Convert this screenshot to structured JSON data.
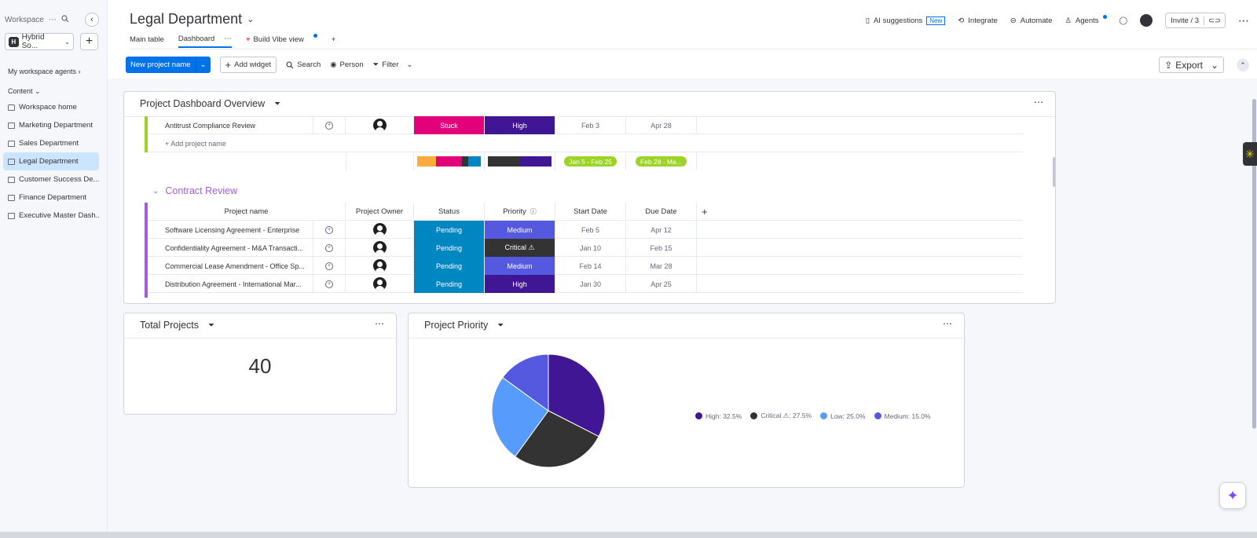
{
  "sidebar": {
    "workspace_label": "Workspace",
    "workspace_name": "Hybrid So...",
    "workspace_initial": "H",
    "agents_label": "My workspace agents",
    "content_label": "Content",
    "items": [
      {
        "label": "Workspace home",
        "icon": "home-icon"
      },
      {
        "label": "Marketing Department",
        "icon": "board-icon"
      },
      {
        "label": "Sales Department",
        "icon": "board-icon"
      },
      {
        "label": "Legal Department",
        "icon": "board-icon",
        "active": true
      },
      {
        "label": "Customer Success De...",
        "icon": "board-icon"
      },
      {
        "label": "Finance Department",
        "icon": "dashboard-icon"
      },
      {
        "label": "Executive Master Dash...",
        "icon": "dashboard-icon"
      }
    ]
  },
  "header": {
    "title": "Legal Department",
    "tabs": [
      {
        "label": "Main table"
      },
      {
        "label": "Dashboard",
        "active": true
      },
      {
        "label": "Build Vibe view"
      }
    ],
    "ai_suggestions": "AI suggestions",
    "new_badge": "New",
    "integrate": "Integrate",
    "automate": "Automate",
    "agents": "Agents",
    "invite": "Invite / 3"
  },
  "toolbar": {
    "new_project": "New project name",
    "add_widget": "Add widget",
    "search": "Search",
    "person": "Person",
    "filter": "Filter",
    "export": "Export"
  },
  "overview": {
    "title": "Project Dashboard Overview",
    "top_row": {
      "name": "Antitrust Compliance Review",
      "status": "Stuck",
      "priority": "High",
      "start": "Feb 3",
      "due": "Apr 28"
    },
    "add_project": "+ Add project name",
    "summary_start": "Jan 5 - Feb 25",
    "summary_due": "Feb 28 - Ma...",
    "group_title": "Contract Review",
    "columns": [
      "Project name",
      "Project Owner",
      "Status",
      "Priority",
      "Start Date",
      "Due Date"
    ],
    "rows": [
      {
        "name": "Software Licensing Agreement - Enterprise",
        "status": "Pending",
        "priority": "Medium",
        "start": "Feb 5",
        "due": "Apr 12"
      },
      {
        "name": "Confidentiality Agreement - M&A Transacti...",
        "status": "Pending",
        "priority": "Critical ⚠",
        "start": "Jan 10",
        "due": "Feb 15"
      },
      {
        "name": "Commercial Lease Amendment - Office Sp...",
        "status": "Pending",
        "priority": "Medium",
        "start": "Feb 14",
        "due": "Mar 28"
      },
      {
        "name": "Distribution Agreement - International Mar...",
        "status": "Pending",
        "priority": "High",
        "start": "Jan 30",
        "due": "Apr 25"
      }
    ]
  },
  "total_projects": {
    "title": "Total Projects",
    "value": "40"
  },
  "project_priority": {
    "title": "Project Priority",
    "legend": [
      "High: 32.5%",
      "Critical ⚠: 27.5%",
      "Low: 25.0%",
      "Medium: 15.0%"
    ]
  },
  "chart_data": {
    "type": "pie",
    "title": "Project Priority",
    "categories": [
      "High",
      "Critical",
      "Low",
      "Medium"
    ],
    "values": [
      32.5,
      27.5,
      25.0,
      15.0
    ],
    "colors": [
      "#401694",
      "#333333",
      "#579bfc",
      "#5559df"
    ],
    "legend": "right"
  },
  "colors": {
    "primary": "#0073ea",
    "stuck": "#e2007b",
    "high": "#401694",
    "medium": "#5559df",
    "critical": "#333333",
    "pending": "#0086c0",
    "date_pill": "#9cd326",
    "group_purple": "#a25ddc",
    "group_green": "#9cd326"
  }
}
